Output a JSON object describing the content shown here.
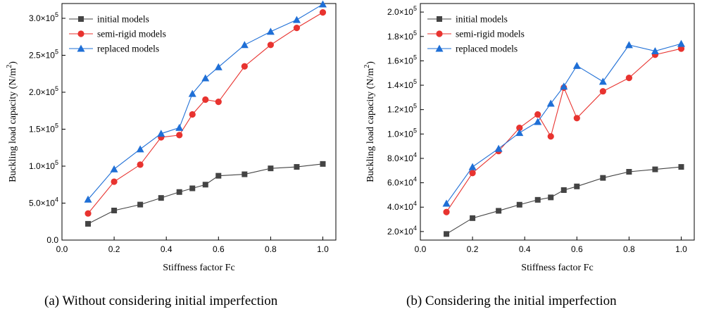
{
  "colors": {
    "initial": "#444444",
    "semi": "#e8332f",
    "replaced": "#1f6fd6"
  },
  "chart_data": [
    {
      "type": "line",
      "caption": "(a) Without considering initial imperfection",
      "xlabel": "Stiffness factor Fc",
      "ylabel": "Buckling load capacity (N/m",
      "ylabel_sup": "2",
      "ylabel_close": ")",
      "xlim": [
        0.0,
        1.05
      ],
      "ylim": [
        0,
        320000
      ],
      "xticks": [
        0.0,
        0.2,
        0.4,
        0.6,
        0.8,
        1.0
      ],
      "xtick_labels": [
        "0.0",
        "0.2",
        "0.4",
        "0.6",
        "0.8",
        "1.0"
      ],
      "yticks": [
        0,
        50000,
        100000,
        150000,
        200000,
        250000,
        300000
      ],
      "ytick_labels": [
        {
          "m": "0.0",
          "e": ""
        },
        {
          "m": "5.0×10",
          "e": "4"
        },
        {
          "m": "1.0×10",
          "e": "5"
        },
        {
          "m": "1.5×10",
          "e": "5"
        },
        {
          "m": "2.0×10",
          "e": "5"
        },
        {
          "m": "2.5×10",
          "e": "5"
        },
        {
          "m": "3.0×10",
          "e": "5"
        }
      ],
      "legend_position": "top-left",
      "x": [
        0.1,
        0.2,
        0.3,
        0.38,
        0.45,
        0.5,
        0.55,
        0.6,
        0.7,
        0.8,
        0.9,
        1.0
      ],
      "series": [
        {
          "name": "initial models",
          "marker": "square",
          "color_key": "initial",
          "values": [
            22000,
            40000,
            48000,
            57000,
            65000,
            70000,
            75000,
            87000,
            89000,
            97000,
            99000,
            103000
          ]
        },
        {
          "name": "semi-rigid models",
          "marker": "circle",
          "color_key": "semi",
          "values": [
            36000,
            79000,
            102000,
            139000,
            142000,
            170000,
            190000,
            187000,
            235000,
            264000,
            287000,
            308000
          ]
        },
        {
          "name": "replaced models",
          "marker": "triangle",
          "color_key": "replaced",
          "values": [
            55000,
            96000,
            123000,
            144000,
            152000,
            198000,
            219000,
            234000,
            264000,
            282000,
            298000,
            319000
          ]
        }
      ]
    },
    {
      "type": "line",
      "caption": "(b) Considering the initial imperfection",
      "xlabel": "Stiffness factor Fc",
      "ylabel": "Buckling load capacity (N/m",
      "ylabel_sup": "2",
      "ylabel_close": ")",
      "xlim": [
        0.0,
        1.05
      ],
      "ylim": [
        13000,
        207000
      ],
      "xticks": [
        0.0,
        0.2,
        0.4,
        0.6,
        0.8,
        1.0
      ],
      "xtick_labels": [
        "0.0",
        "0.2",
        "0.4",
        "0.6",
        "0.8",
        "1.0"
      ],
      "yticks": [
        20000,
        40000,
        60000,
        80000,
        100000,
        120000,
        140000,
        160000,
        180000,
        200000
      ],
      "ytick_labels": [
        {
          "m": "2.0×10",
          "e": "4"
        },
        {
          "m": "4.0×10",
          "e": "4"
        },
        {
          "m": "6.0×10",
          "e": "4"
        },
        {
          "m": "8.0×10",
          "e": "4"
        },
        {
          "m": "1.0×10",
          "e": "5"
        },
        {
          "m": "1.2×10",
          "e": "5"
        },
        {
          "m": "1.4×10",
          "e": "5"
        },
        {
          "m": "1.6×10",
          "e": "5"
        },
        {
          "m": "1.8×10",
          "e": "5"
        },
        {
          "m": "2.0×10",
          "e": "5"
        }
      ],
      "legend_position": "top-left",
      "x": [
        0.1,
        0.2,
        0.3,
        0.38,
        0.45,
        0.5,
        0.55,
        0.6,
        0.7,
        0.8,
        0.9,
        1.0
      ],
      "series": [
        {
          "name": "initial models",
          "marker": "square",
          "color_key": "initial",
          "values": [
            18000,
            31000,
            37000,
            42000,
            46000,
            48000,
            54000,
            57000,
            64000,
            69000,
            71000,
            73000
          ]
        },
        {
          "name": "semi-rigid models",
          "marker": "circle",
          "color_key": "semi",
          "values": [
            36000,
            68000,
            86000,
            105000,
            116000,
            98000,
            138000,
            113000,
            135000,
            146000,
            165000,
            170000
          ]
        },
        {
          "name": "replaced models",
          "marker": "triangle",
          "color_key": "replaced",
          "values": [
            43000,
            73000,
            88000,
            101000,
            110000,
            125000,
            139000,
            156000,
            143000,
            173000,
            168000,
            174000
          ]
        }
      ]
    }
  ]
}
